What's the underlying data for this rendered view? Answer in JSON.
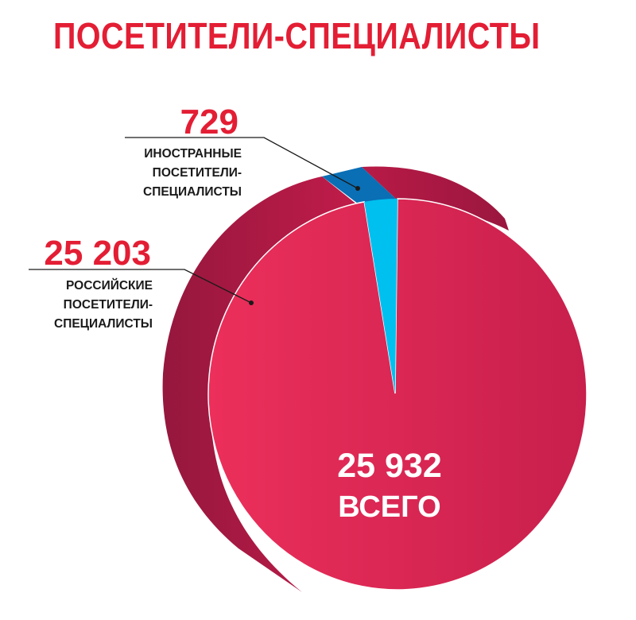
{
  "chart_data": {
    "type": "pie",
    "title": "ПОСЕТИТЕЛИ-СПЕЦИАЛИСТЫ",
    "total": {
      "value": "25 932",
      "label": "ВСЕГО"
    },
    "slices": [
      {
        "value_label": "25 203",
        "value": 25203,
        "caption": [
          "РОССИЙСКИЕ",
          "ПОСЕТИТЕЛИ-",
          "СПЕЦИАЛИСТЫ"
        ],
        "color": "#e0285a"
      },
      {
        "value_label": "729",
        "value": 729,
        "caption": [
          "ИНОСТРАННЫЕ",
          "ПОСЕТИТЕЛИ-",
          "СПЕЦИАЛИСТЫ"
        ],
        "color": "#00c0f0"
      }
    ]
  },
  "colors": {
    "title": "#e31e34",
    "pie_front": "#e0285a",
    "pie_side": "#a31843",
    "slice_small": "#00c0f0",
    "slice_small_side": "#0a6fb5"
  }
}
